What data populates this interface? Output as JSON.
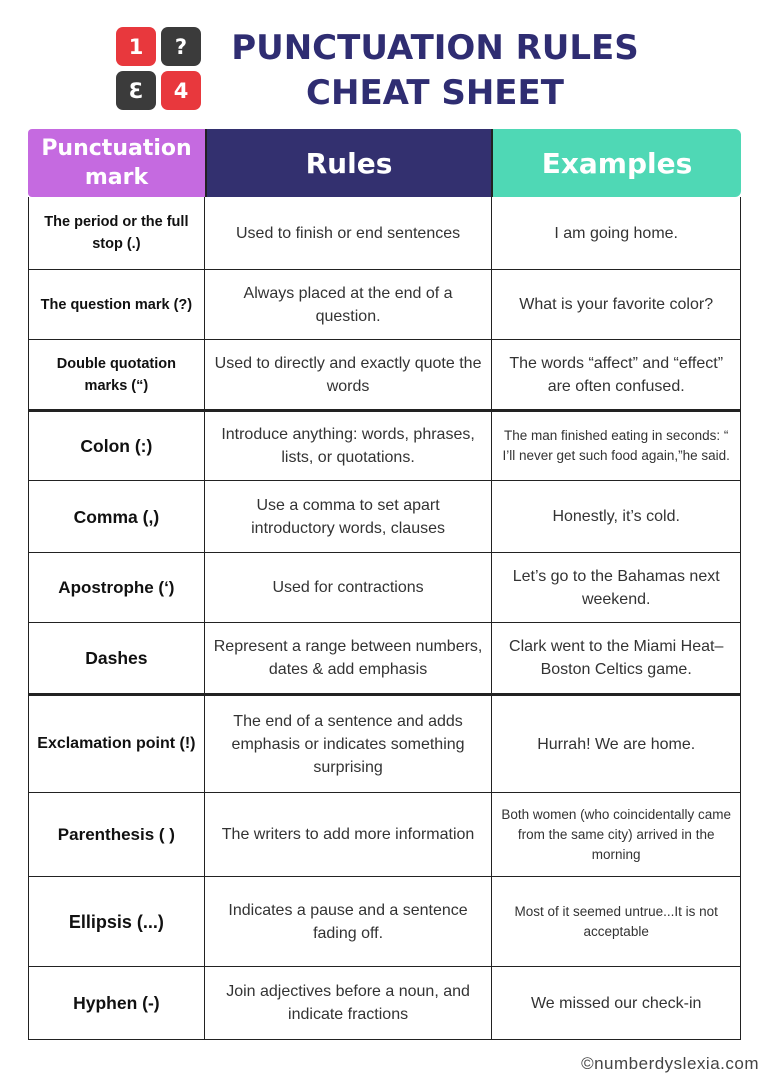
{
  "logo": {
    "tiles": [
      "1",
      "?",
      "Ɛ",
      "4"
    ],
    "colors": {
      "red": "#e8383d",
      "dark": "#3b3b3b"
    }
  },
  "title": {
    "line1": "PUNCTUATION RULES",
    "line2": "CHEAT SHEET",
    "color": "#2f2d72"
  },
  "table": {
    "headers": [
      "Punctuation mark",
      "Rules",
      "Examples"
    ],
    "header_colors": [
      "#c56ae0",
      "#33306f",
      "#4fd8b5"
    ],
    "rows": [
      {
        "mark": "The period or the full stop (.)",
        "rule": "Used to finish or end sentences",
        "example": "I am going home."
      },
      {
        "mark": "The question mark (?)",
        "rule": "Always placed at the end of a question.",
        "example": "What is your favorite color?"
      },
      {
        "mark": "Double quotation marks (“)",
        "rule": "Used to directly and exactly quote the words",
        "example": "The words “affect” and “effect” are often confused."
      },
      {
        "mark": "Colon (:)",
        "rule": "Introduce anything: words, phrases, lists, or quotations.",
        "example": "The man finished eating in seconds: “ I’ll never get such food again,”he said."
      },
      {
        "mark": "Comma (,)",
        "rule": "Use a comma to set apart introductory words, clauses",
        "example": "Honestly, it’s cold."
      },
      {
        "mark": "Apostrophe (‘)",
        "rule": "Used for contractions",
        "example": "Let’s go to the Bahamas next weekend."
      },
      {
        "mark": "Dashes",
        "rule": "Represent a range between numbers, dates & add emphasis",
        "example": "Clark went to the Miami Heat–Boston Celtics game."
      },
      {
        "mark": "Exclamation point (!)",
        "rule": "The end of a sentence and adds emphasis or indicates something surprising",
        "example": "Hurrah! We are home."
      },
      {
        "mark": "Parenthesis ( )",
        "rule": "The writers to add more information",
        "example": "Both women (who coincidentally came from the same city) arrived in the morning"
      },
      {
        "mark": "Ellipsis (...)",
        "rule": "Indicates a pause and a sentence fading off.",
        "example": "Most of it seemed untrue...It is not acceptable"
      },
      {
        "mark": "Hyphen (-)",
        "rule": "Join adjectives before a noun, and indicate fractions",
        "example": "We missed our check-in"
      }
    ]
  },
  "footer": "©numberdyslexia.com"
}
